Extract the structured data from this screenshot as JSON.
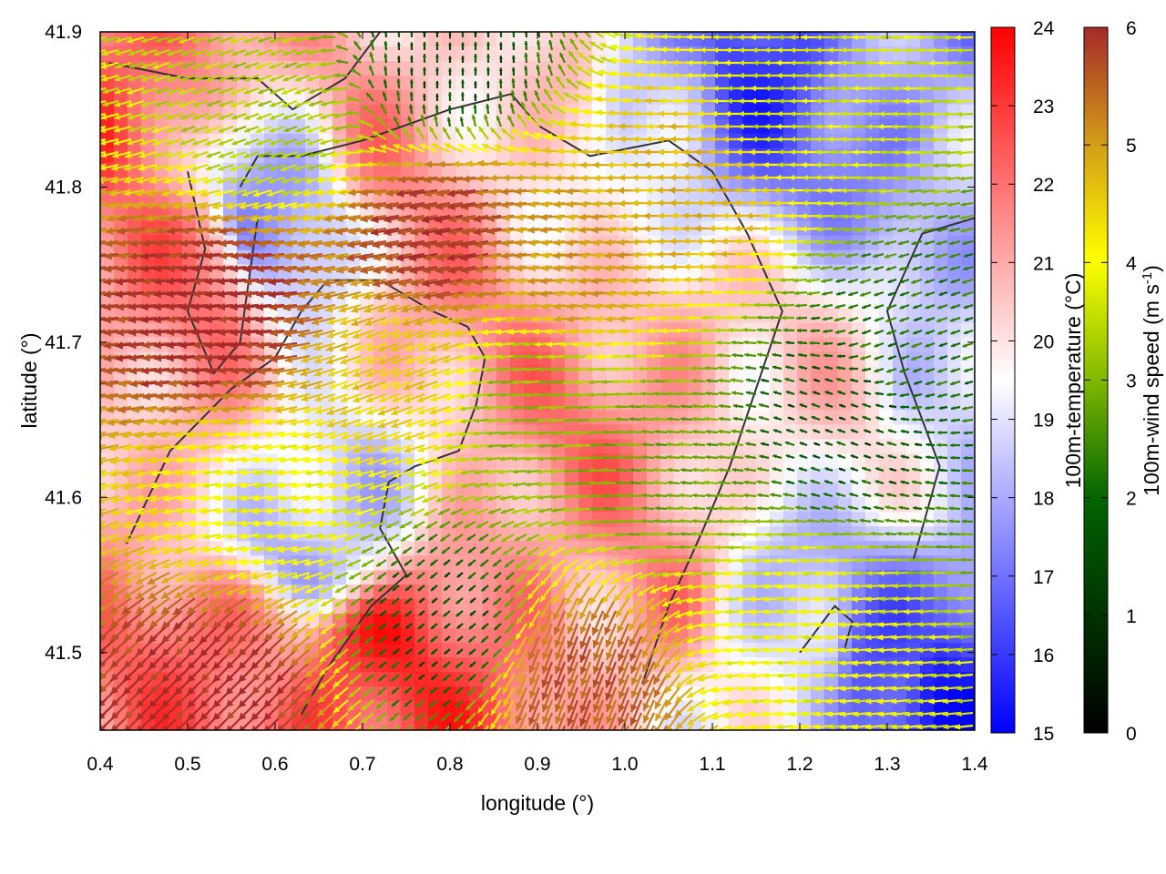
{
  "chart_data": {
    "type": "heatmap",
    "title": "",
    "xlabel": "longitude (°)",
    "ylabel": "latitude (°)",
    "xlim": [
      0.4,
      1.4
    ],
    "ylim": [
      41.45,
      41.9
    ],
    "x_ticks": [
      "0.4",
      "0.5",
      "0.6",
      "0.7",
      "0.8",
      "0.9",
      "1.0",
      "1.1",
      "1.2",
      "1.3",
      "1.4"
    ],
    "x_tick_values": [
      0.4,
      0.5,
      0.6,
      0.7,
      0.8,
      0.9,
      1.0,
      1.1,
      1.2,
      1.3,
      1.4
    ],
    "y_ticks": [
      "41.5",
      "41.6",
      "41.7",
      "41.8",
      "41.9"
    ],
    "y_tick_values": [
      41.5,
      41.6,
      41.7,
      41.8,
      41.9
    ],
    "grid": false,
    "temperature_colorbar": {
      "label": "100m-temperature (°C)",
      "range": [
        15,
        24
      ],
      "ticks": [
        "15",
        "16",
        "17",
        "18",
        "19",
        "20",
        "21",
        "22",
        "23",
        "24"
      ],
      "tick_values": [
        15,
        16,
        17,
        18,
        19,
        20,
        21,
        22,
        23,
        24
      ],
      "colors": [
        "#0000ff",
        "#ffffff",
        "#ff0000"
      ]
    },
    "wind_colorbar": {
      "label": "100m-wind speed (m s-1)",
      "range": [
        0,
        6
      ],
      "ticks": [
        "0",
        "1",
        "2",
        "3",
        "4",
        "5",
        "6"
      ],
      "tick_values": [
        0,
        1,
        2,
        3,
        4,
        5,
        6
      ],
      "colors": [
        "#000000",
        "#006400",
        "#7fb800",
        "#ffff00",
        "#d4a017",
        "#a52a2a"
      ]
    },
    "temperature_field": {
      "description_points": [
        {
          "lon": 0.42,
          "lat": 41.87,
          "t": 22.5
        },
        {
          "lon": 0.5,
          "lat": 41.75,
          "t": 21.5
        },
        {
          "lon": 0.6,
          "lat": 41.78,
          "t": 18.2
        },
        {
          "lon": 0.75,
          "lat": 41.83,
          "t": 21.0
        },
        {
          "lon": 0.9,
          "lat": 41.85,
          "t": 20.5
        },
        {
          "lon": 1.05,
          "lat": 41.88,
          "t": 18.0
        },
        {
          "lon": 1.15,
          "lat": 41.88,
          "t": 16.5
        },
        {
          "lon": 1.3,
          "lat": 41.86,
          "t": 17.5
        },
        {
          "lon": 1.38,
          "lat": 41.8,
          "t": 18.0
        },
        {
          "lon": 0.8,
          "lat": 41.72,
          "t": 21.0
        },
        {
          "lon": 1.0,
          "lat": 41.66,
          "t": 21.5
        },
        {
          "lon": 1.25,
          "lat": 41.68,
          "t": 20.0
        },
        {
          "lon": 1.35,
          "lat": 41.65,
          "t": 19.0
        },
        {
          "lon": 0.65,
          "lat": 41.58,
          "t": 18.0
        },
        {
          "lon": 0.55,
          "lat": 41.5,
          "t": 22.0
        },
        {
          "lon": 0.7,
          "lat": 41.48,
          "t": 23.0
        },
        {
          "lon": 0.85,
          "lat": 41.52,
          "t": 22.0
        },
        {
          "lon": 1.0,
          "lat": 41.55,
          "t": 21.0
        },
        {
          "lon": 1.2,
          "lat": 41.5,
          "t": 19.0
        },
        {
          "lon": 1.3,
          "lat": 41.5,
          "t": 17.0
        },
        {
          "lon": 1.38,
          "lat": 41.48,
          "t": 15.5
        },
        {
          "lon": 0.45,
          "lat": 41.62,
          "t": 21.0
        }
      ]
    },
    "wind_field": {
      "components": [
        {
          "lon": 0.55,
          "lat": 41.72,
          "speed": 6.0,
          "dir_deg": 185
        },
        {
          "lon": 0.8,
          "lat": 41.77,
          "speed": 5.8,
          "dir_deg": 190
        },
        {
          "lon": 0.75,
          "lat": 41.68,
          "speed": 4.2,
          "dir_deg": 200
        },
        {
          "lon": 0.95,
          "lat": 41.75,
          "speed": 4.8,
          "dir_deg": 185
        },
        {
          "lon": 1.1,
          "lat": 41.8,
          "speed": 4.5,
          "dir_deg": 180
        },
        {
          "lon": 1.2,
          "lat": 41.85,
          "speed": 3.2,
          "dir_deg": 180
        },
        {
          "lon": 0.9,
          "lat": 41.66,
          "speed": 2.5,
          "dir_deg": 185
        },
        {
          "lon": 1.05,
          "lat": 41.62,
          "speed": 2.2,
          "dir_deg": 175
        },
        {
          "lon": 1.25,
          "lat": 41.65,
          "speed": 1.0,
          "dir_deg": 160
        },
        {
          "lon": 1.32,
          "lat": 41.7,
          "speed": 1.5,
          "dir_deg": 200
        },
        {
          "lon": 0.6,
          "lat": 41.6,
          "speed": 3.5,
          "dir_deg": 190
        },
        {
          "lon": 0.55,
          "lat": 41.48,
          "speed": 6.0,
          "dir_deg": 225
        },
        {
          "lon": 0.95,
          "lat": 41.49,
          "speed": 5.5,
          "dir_deg": 250
        },
        {
          "lon": 0.8,
          "lat": 41.52,
          "speed": 1.0,
          "dir_deg": 220
        },
        {
          "lon": 1.2,
          "lat": 41.52,
          "speed": 3.5,
          "dir_deg": 185
        },
        {
          "lon": 0.6,
          "lat": 41.85,
          "speed": 2.8,
          "dir_deg": 200
        },
        {
          "lon": 0.8,
          "lat": 41.88,
          "speed": 1.0,
          "dir_deg": 90
        }
      ]
    },
    "contour_lines": 1
  }
}
